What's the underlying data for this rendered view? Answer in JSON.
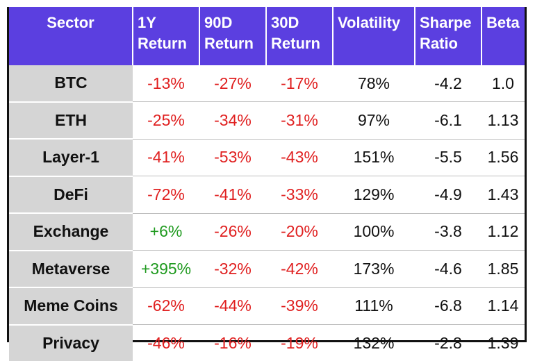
{
  "chart_data": {
    "type": "table",
    "columns": [
      "Sector",
      "1Y Return",
      "90D Return",
      "30D Return",
      "Volatility",
      "Sharpe Ratio",
      "Beta"
    ],
    "header_lines": [
      [
        "Sector"
      ],
      [
        "1Y",
        "Return"
      ],
      [
        "90D",
        "Return"
      ],
      [
        "30D",
        "Return"
      ],
      [
        "Volatility"
      ],
      [
        "Sharpe",
        "Ratio"
      ],
      [
        "Beta"
      ]
    ],
    "rows": [
      [
        "BTC",
        "-13%",
        "-27%",
        "-17%",
        "78%",
        "-4.2",
        "1.0"
      ],
      [
        "ETH",
        "-25%",
        "-34%",
        "-31%",
        "97%",
        "-6.1",
        "1.13"
      ],
      [
        "Layer-1",
        "-41%",
        "-53%",
        "-43%",
        "151%",
        "-5.5",
        "1.56"
      ],
      [
        "DeFi",
        "-72%",
        "-41%",
        "-33%",
        "129%",
        "-4.9",
        "1.43"
      ],
      [
        "Exchange",
        "+6%",
        "-26%",
        "-20%",
        "100%",
        "-3.8",
        "1.12"
      ],
      [
        "Metaverse",
        "+395%",
        "-32%",
        "-42%",
        "173%",
        "-4.6",
        "1.85"
      ],
      [
        "Meme Coins",
        "-62%",
        "-44%",
        "-39%",
        "111%",
        "-6.8",
        "1.14"
      ],
      [
        "Privacy",
        "-46%",
        "-16%",
        "-19%",
        "132%",
        "-2.8",
        "1.39"
      ]
    ],
    "colors": {
      "header_bg": "#5b3fe0",
      "header_text": "#ffffff",
      "sector_bg": "#d5d5d5",
      "negative": "#e02020",
      "positive": "#1f9a1f",
      "neutral": "#111111"
    }
  }
}
